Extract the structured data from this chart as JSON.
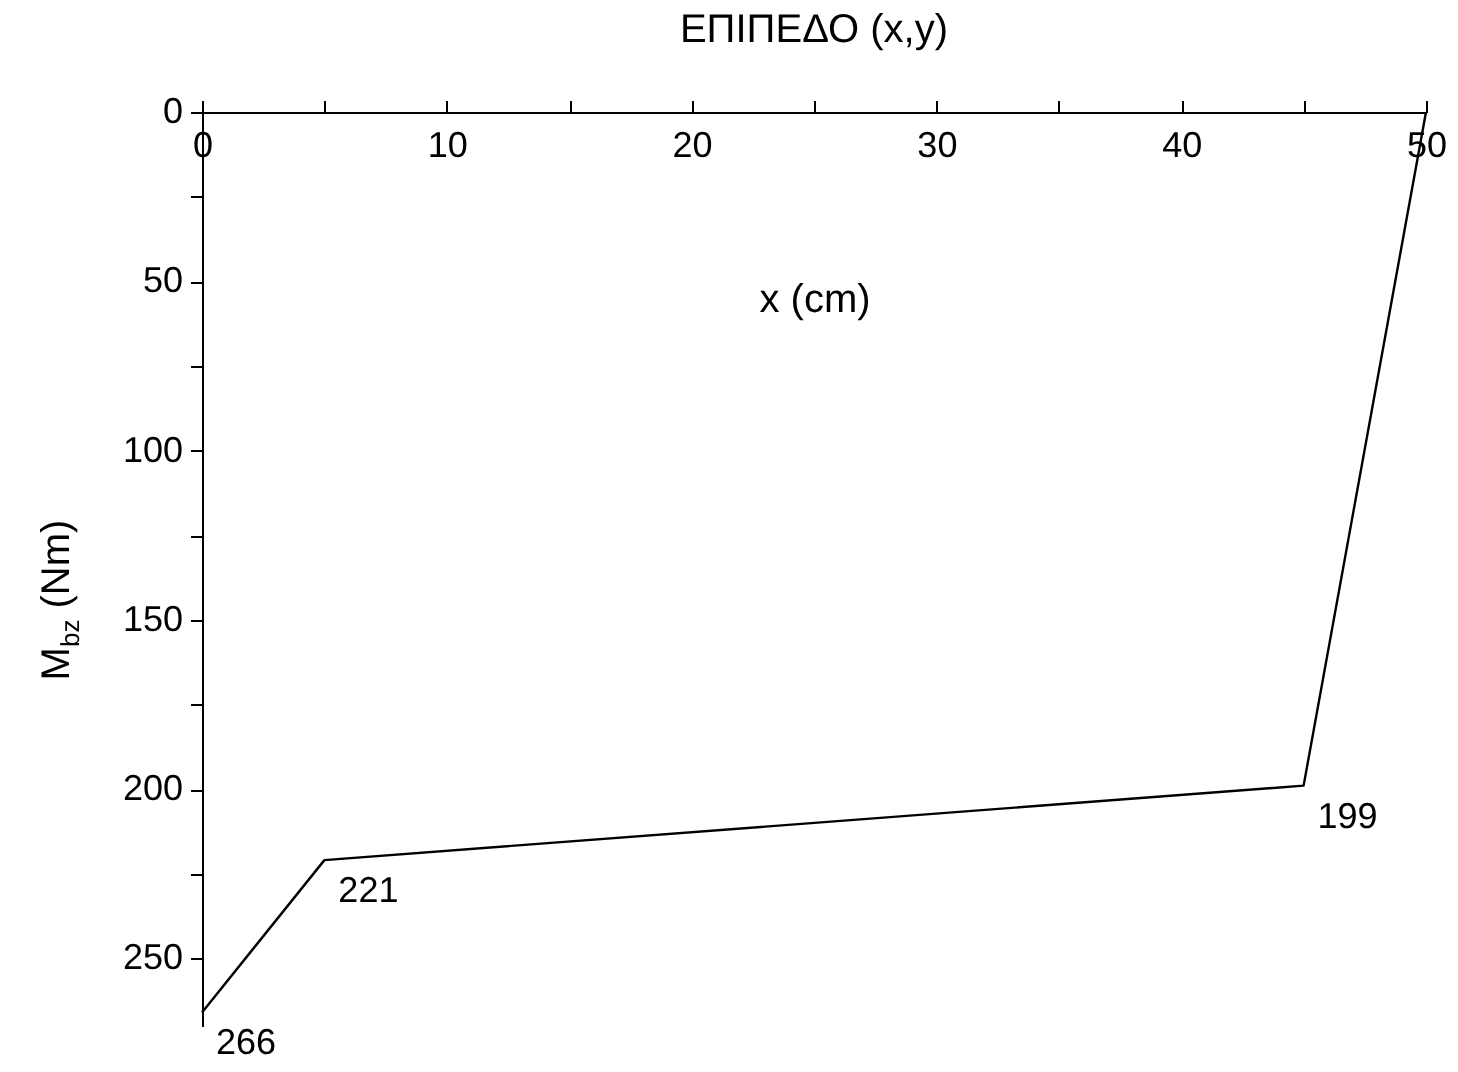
{
  "chart_data": {
    "type": "line",
    "title": "ΕΠΙΠΕΔΟ (x,y)",
    "xlabel": "x (cm)",
    "ylabel": "M$_{bz}$ (Nm)",
    "x": [
      0,
      5,
      45,
      50
    ],
    "series": [
      {
        "color": "#000000",
        "values": [
          266,
          221,
          199,
          0
        ]
      }
    ],
    "xlim": [
      0,
      50
    ],
    "xticks": [
      0,
      {
        "value": 5,
        "label": null
      },
      10,
      {
        "value": 15,
        "label": null
      },
      20,
      {
        "value": 25,
        "label": null
      },
      30,
      {
        "value": 35,
        "label": null
      },
      40,
      {
        "value": 45,
        "label": null
      },
      50
    ],
    "ylim": [
      270,
      0
    ],
    "yticks": [
      0,
      {
        "value": 25,
        "label": null
      },
      50,
      {
        "value": 75,
        "label": null
      },
      100,
      {
        "value": 125,
        "label": null
      },
      150,
      {
        "value": 175,
        "label": null
      },
      200,
      {
        "value": 225,
        "label": null
      },
      250
    ],
    "annotations": [
      {
        "text": "266",
        "x": 0,
        "y": 266
      },
      {
        "text": "221",
        "x": 5,
        "y": 221
      },
      {
        "text": "199",
        "x": 45,
        "y": 199
      }
    ],
    "grid": false,
    "legend": false,
    "marker": "none",
    "line_style": "solid"
  }
}
